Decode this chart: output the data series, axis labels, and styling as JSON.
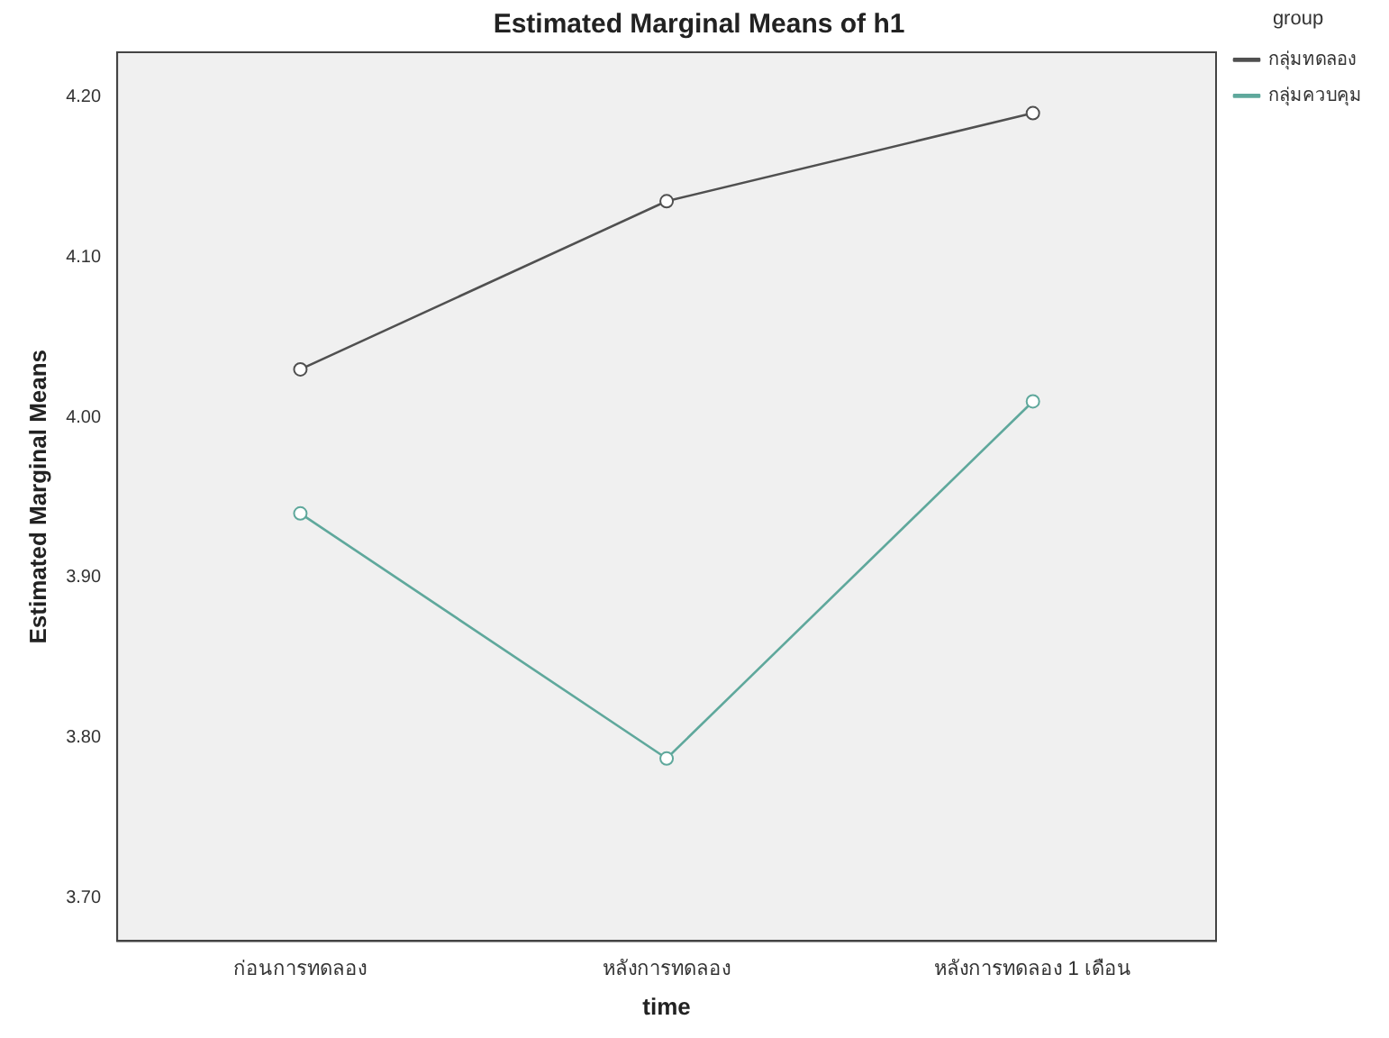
{
  "chart_data": {
    "type": "line",
    "title": "Estimated Marginal Means of h1",
    "xlabel": "time",
    "ylabel": "Estimated Marginal Means",
    "legend_title": "group",
    "categories": [
      "ก่อนการทดลอง",
      "หลังการทดลอง",
      "หลังการทดลอง 1 เดือน"
    ],
    "series": [
      {
        "name": "กลุ่มทดลอง",
        "color": "#505050",
        "values": [
          4.03,
          4.135,
          4.19
        ]
      },
      {
        "name": "กลุ่มควบคุม",
        "color": "#5fa89c",
        "values": [
          3.94,
          3.787,
          4.01
        ]
      }
    ],
    "ylim": [
      3.673,
      4.228
    ],
    "yticks": [
      {
        "value": 3.7,
        "label": "3.70"
      },
      {
        "value": 3.8,
        "label": "3.80"
      },
      {
        "value": 3.9,
        "label": "3.90"
      },
      {
        "value": 4.0,
        "label": "4.00"
      },
      {
        "value": 4.1,
        "label": "4.10"
      },
      {
        "value": 4.2,
        "label": "4.20"
      }
    ],
    "grid": false,
    "legend": "top right",
    "marker": "circle",
    "line_style": "solid"
  }
}
